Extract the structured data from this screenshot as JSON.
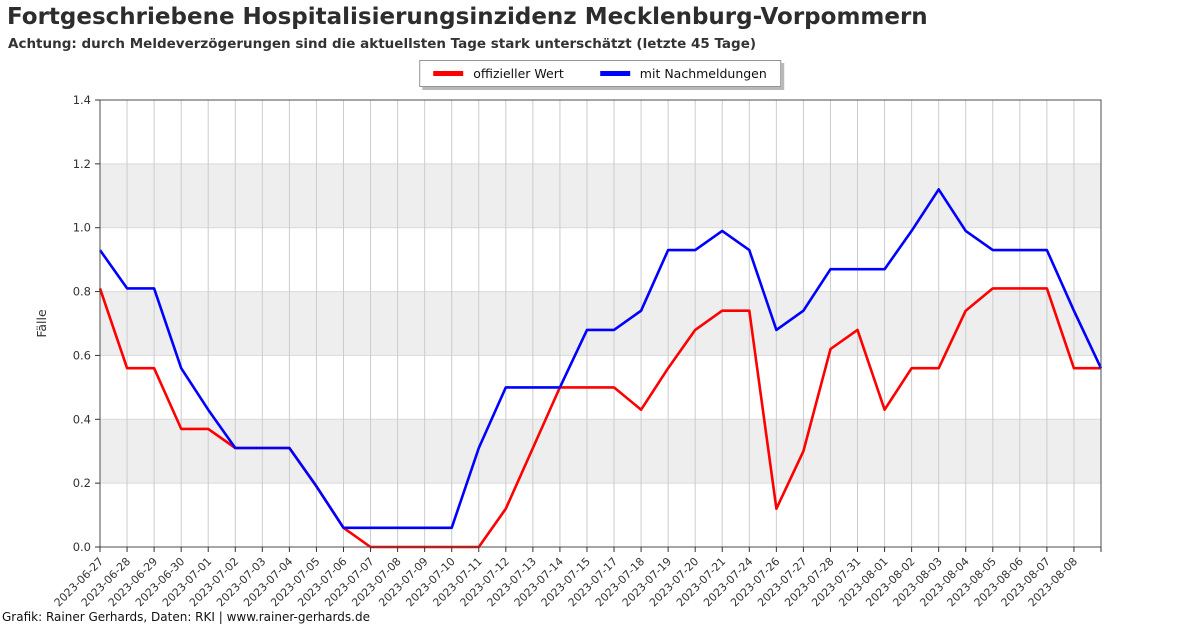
{
  "footer": {
    "credit": "Grafik: Rainer Gerhards, Daten: RKI | www.rainer-gerhards.de"
  },
  "chart_data": {
    "type": "line",
    "title": "Fortgeschriebene Hospitalisierungsinzidenz Mecklenburg-Vorpommern",
    "subtitle": "Achtung: durch Meldeverzögerungen sind die aktuellsten Tage stark unterschätzt (letzte 45 Tage)",
    "ylabel": "Fälle",
    "xlabel": "",
    "ylim": [
      0.0,
      1.4
    ],
    "yticks": [
      0.0,
      0.2,
      0.4,
      0.6,
      0.8,
      1.0,
      1.2,
      1.4
    ],
    "grid": true,
    "band_color": "#eeeeee",
    "gray_bands": [
      [
        0.2,
        0.4
      ],
      [
        0.6,
        0.8
      ],
      [
        1.0,
        1.2
      ]
    ],
    "legend_position": "top-center",
    "categories": [
      "2023-06-27",
      "2023-06-28",
      "2023-06-29",
      "2023-06-30",
      "2023-07-01",
      "2023-07-02",
      "2023-07-03",
      "2023-07-04",
      "2023-07-05",
      "2023-07-06",
      "2023-07-07",
      "2023-07-08",
      "2023-07-09",
      "2023-07-10",
      "2023-07-11",
      "2023-07-12",
      "2023-07-13",
      "2023-07-14",
      "2023-07-15",
      "2023-07-17",
      "2023-07-18",
      "2023-07-19",
      "2023-07-20",
      "2023-07-21",
      "2023-07-24",
      "2023-07-26",
      "2023-07-27",
      "2023-07-28",
      "2023-07-31",
      "2023-08-01",
      "2023-08-02",
      "2023-08-03",
      "2023-08-04",
      "2023-08-05",
      "2023-08-06",
      "2023-08-07",
      "2023-08-08",
      ""
    ],
    "series": [
      {
        "name": "offizieller Wert",
        "color": "#ff0000",
        "values": [
          0.81,
          0.56,
          0.56,
          0.37,
          0.37,
          0.31,
          0.31,
          0.31,
          0.19,
          0.06,
          0.0,
          0.0,
          0.0,
          0.0,
          0.0,
          0.12,
          0.31,
          0.5,
          0.5,
          0.5,
          0.43,
          0.56,
          0.68,
          0.74,
          0.74,
          0.12,
          0.3,
          0.62,
          0.68,
          0.43,
          0.56,
          0.56,
          0.74,
          0.81,
          0.81,
          0.81,
          0.56,
          0.56
        ]
      },
      {
        "name": "mit Nachmeldungen",
        "color": "#0000ff",
        "values": [
          0.93,
          0.81,
          0.81,
          0.56,
          0.43,
          0.31,
          0.31,
          0.31,
          0.19,
          0.06,
          0.06,
          0.06,
          0.06,
          0.06,
          0.31,
          0.5,
          0.5,
          0.5,
          0.68,
          0.68,
          0.74,
          0.93,
          0.93,
          0.99,
          0.93,
          0.68,
          0.74,
          0.87,
          0.87,
          0.87,
          0.99,
          1.12,
          0.99,
          0.93,
          0.93,
          0.93,
          0.74,
          0.56
        ]
      }
    ]
  }
}
